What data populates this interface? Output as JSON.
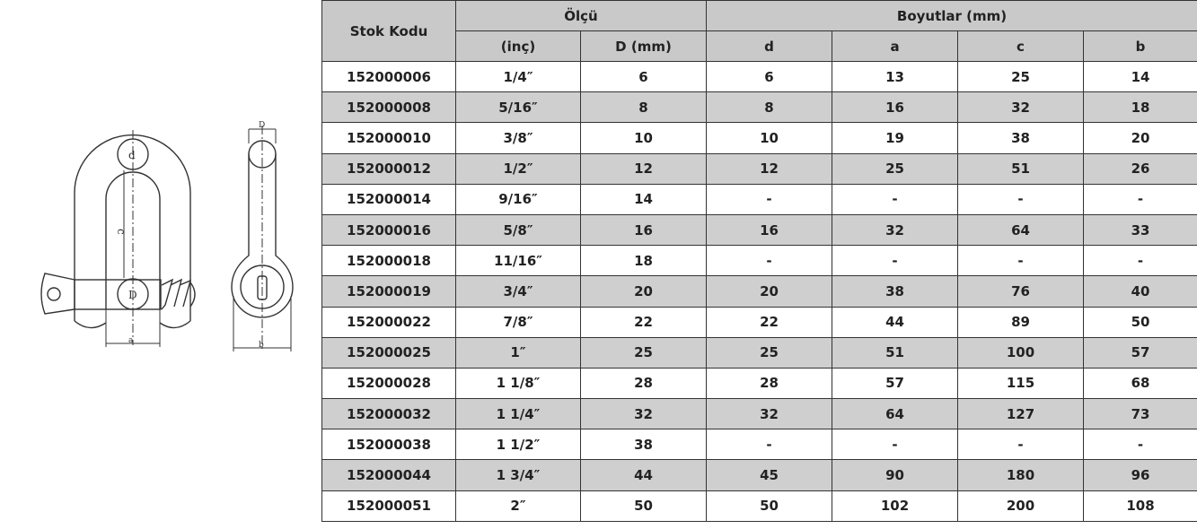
{
  "diagram": {
    "labels": {
      "d": "d",
      "c": "c",
      "D": "D",
      "a": "a",
      "b": "b",
      "top": "D"
    }
  },
  "table": {
    "header": {
      "stok_kodu": "Stok Kodu",
      "olcu": "Ölçü",
      "boyutlar": "Boyutlar (mm)"
    },
    "subheaders": [
      "(inç)",
      "D (mm)",
      "d",
      "a",
      "c",
      "b"
    ],
    "rows": [
      [
        "152000006",
        "1/4″",
        "6",
        "6",
        "13",
        "25",
        "14"
      ],
      [
        "152000008",
        "5/16″",
        "8",
        "8",
        "16",
        "32",
        "18"
      ],
      [
        "152000010",
        "3/8″",
        "10",
        "10",
        "19",
        "38",
        "20"
      ],
      [
        "152000012",
        "1/2″",
        "12",
        "12",
        "25",
        "51",
        "26"
      ],
      [
        "152000014",
        "9/16″",
        "14",
        "-",
        "-",
        "-",
        "-"
      ],
      [
        "152000016",
        "5/8″",
        "16",
        "16",
        "32",
        "64",
        "33"
      ],
      [
        "152000018",
        "11/16″",
        "18",
        "-",
        "-",
        "-",
        "-"
      ],
      [
        "152000019",
        "3/4″",
        "20",
        "20",
        "38",
        "76",
        "40"
      ],
      [
        "152000022",
        "7/8″",
        "22",
        "22",
        "44",
        "89",
        "50"
      ],
      [
        "152000025",
        "1″",
        "25",
        "25",
        "51",
        "100",
        "57"
      ],
      [
        "152000028",
        "1 1/8″",
        "28",
        "28",
        "57",
        "115",
        "68"
      ],
      [
        "152000032",
        "1 1/4″",
        "32",
        "32",
        "64",
        "127",
        "73"
      ],
      [
        "152000038",
        "1 1/2″",
        "38",
        "-",
        "-",
        "-",
        "-"
      ],
      [
        "152000044",
        "1 3/4″",
        "44",
        "45",
        "90",
        "180",
        "96"
      ],
      [
        "152000051",
        "2″",
        "50",
        "50",
        "102",
        "200",
        "108"
      ]
    ]
  },
  "colors": {
    "header_bg": "#c9c9c9",
    "alt_row_bg": "#cfcfcf",
    "border": "#333333"
  }
}
